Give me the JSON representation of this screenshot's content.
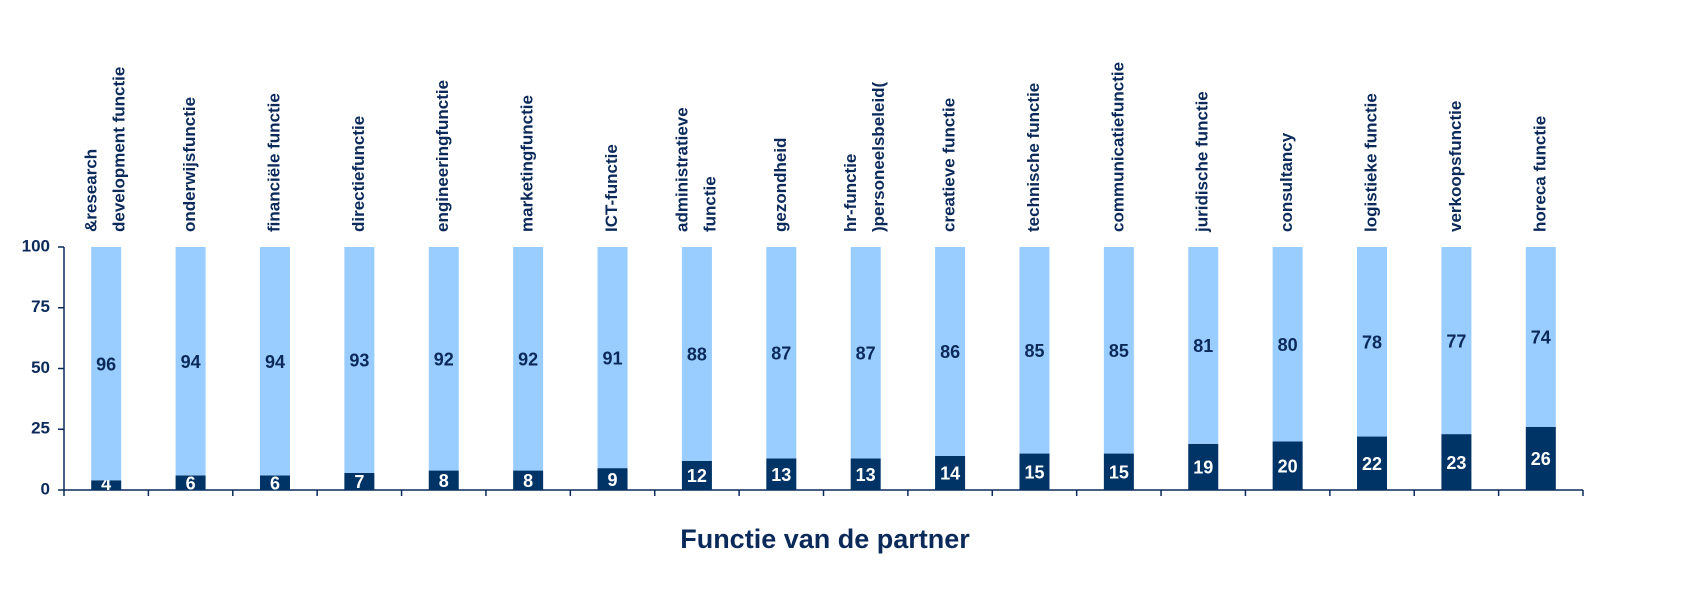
{
  "chart_data": {
    "type": "stacked_bar",
    "x_label": "Functie van de partner",
    "categories": [
      [
        "&research",
        "development functie"
      ],
      "onderwijsfunctie",
      "financiële functie",
      "directiefunctie",
      "engineeringfunctie",
      "marketingfunctie",
      "ICT-functie",
      [
        "administratieve",
        "functie"
      ],
      "gezondheid",
      [
        "hr-functie",
        ")personeelsbeleid("
      ],
      "creatieve functie",
      "technische functie",
      "communicatiefunctie",
      "juridische functie",
      "consultancy",
      "logistieke functie",
      "verkoopsfunctie",
      "horeca functie"
    ],
    "series": [
      {
        "color": "#003366",
        "values": [
          4,
          6,
          6,
          7,
          8,
          8,
          9,
          12,
          13,
          13,
          14,
          15,
          15,
          19,
          20,
          22,
          23,
          26
        ]
      },
      {
        "color": "#99ccff",
        "values": [
          96,
          94,
          94,
          93,
          92,
          92,
          91,
          88,
          87,
          87,
          86,
          85,
          85,
          81,
          80,
          78,
          77,
          74
        ]
      }
    ],
    "ylim": [
      0,
      100
    ],
    "yticks": [
      0,
      25,
      50,
      75,
      100
    ],
    "grid": false
  }
}
